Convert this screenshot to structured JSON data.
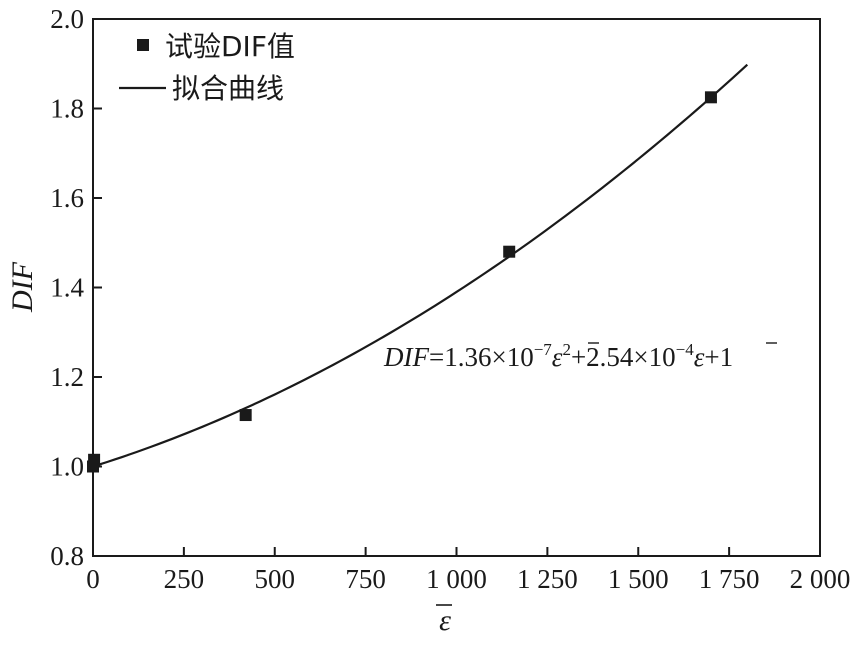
{
  "chart_data": {
    "type": "scatter",
    "xlabel": "ε",
    "ylabel": "DIF",
    "xlim": [
      0,
      2000
    ],
    "ylim": [
      0.8,
      2.0
    ],
    "xticks": [
      0,
      250,
      500,
      750,
      1000,
      1250,
      1500,
      1750,
      2000
    ],
    "yticks": [
      0.8,
      1.0,
      1.2,
      1.4,
      1.6,
      1.8,
      2.0
    ],
    "xtick_labels": [
      "0",
      "250",
      "500",
      "750",
      "1 000",
      "1 250",
      "1 500",
      "1 750",
      "2 000"
    ],
    "ytick_labels": [
      "0.8",
      "1.0",
      "1.2",
      "1.4",
      "1.6",
      "1.8",
      "2.0"
    ],
    "grid": false,
    "legend_position": "top-left",
    "series": [
      {
        "name": "试验DIF值",
        "type": "scatter",
        "marker": "square",
        "color": "#1a1a1a",
        "x": [
          0,
          3,
          420,
          1145,
          1700
        ],
        "y": [
          1.0,
          1.015,
          1.115,
          1.48,
          1.825
        ]
      },
      {
        "name": "拟合曲线",
        "type": "line",
        "color": "#1a1a1a",
        "fit": {
          "a2": 1.36e-07,
          "a1": 0.000254,
          "a0": 1
        },
        "x_range": [
          0,
          1800
        ]
      }
    ],
    "annotation": {
      "lhs": "DIF",
      "eq": "=1.36×10",
      "exp1": "−7",
      "var1": "ε",
      "sq": "2",
      "mid": "+2.54×10",
      "exp2": "−4",
      "var2": "ε",
      "tail": "+1"
    }
  }
}
